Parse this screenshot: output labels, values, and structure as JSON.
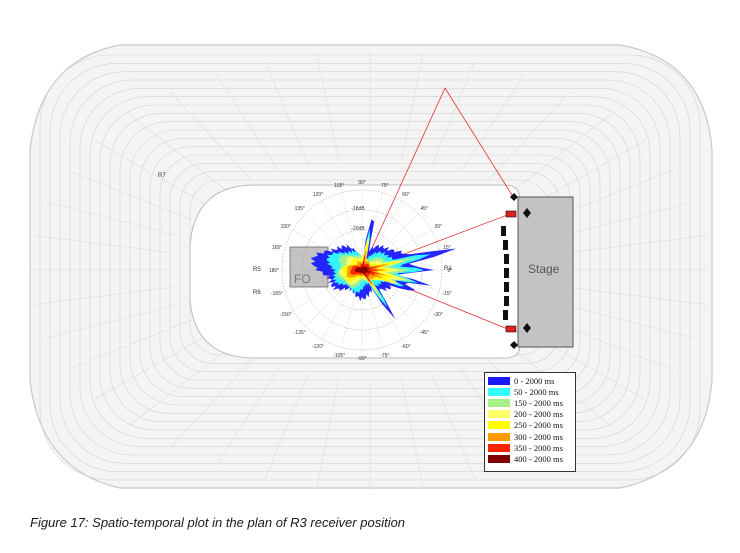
{
  "figure": {
    "caption": "Figure 17: Spatio-temporal plot in the plan of R3 receiver position",
    "stage_label": "Stage",
    "foh_label": "FO",
    "receiver_labels": [
      "R1",
      "R5",
      "R6",
      "R7"
    ],
    "angle_labels": [
      "0°",
      "15°",
      "30°",
      "45°",
      "60°",
      "75°",
      "90°",
      "105°",
      "120°",
      "135°",
      "150°",
      "165°",
      "180°",
      "-165°",
      "-150°",
      "-135°",
      "-120°",
      "-105°",
      "-90°",
      "-75°",
      "-60°",
      "-45°",
      "-30°",
      "-15°"
    ],
    "ring_labels": [
      "-18dB",
      "-20dB"
    ]
  },
  "legend": {
    "entries": [
      {
        "label": "0 - 2000 ms",
        "color": "#1a1aff"
      },
      {
        "label": "50 - 2000 ms",
        "color": "#33ffff"
      },
      {
        "label": "150 - 2000 ms",
        "color": "#a6f08a"
      },
      {
        "label": "200 - 2000 ms",
        "color": "#ffff66"
      },
      {
        "label": "250 - 2000 ms",
        "color": "#ffff00"
      },
      {
        "label": "300 - 2000 ms",
        "color": "#ff9900"
      },
      {
        "label": "350 - 2000 ms",
        "color": "#ff2200"
      },
      {
        "label": "400 - 2000 ms",
        "color": "#800000"
      }
    ]
  }
}
